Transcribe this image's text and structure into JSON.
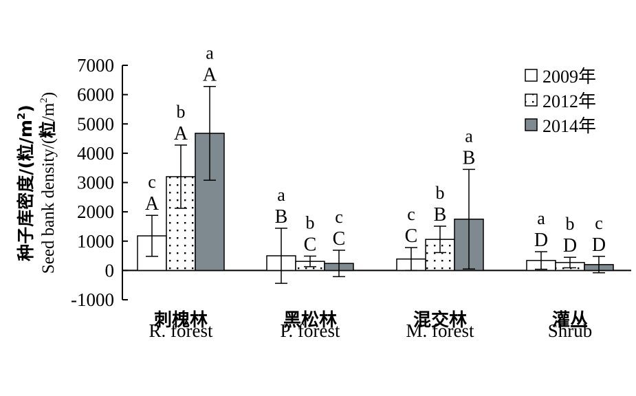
{
  "chart_data": {
    "type": "bar",
    "ylabel_cn": "种子库密度/(粒/m",
    "ylabel_en": "Seed bank density",
    "ylabel_sup": "2",
    "ylabel_close": ")",
    "ylim": [
      -1000,
      7000
    ],
    "yticks": [
      -1000,
      0,
      1000,
      2000,
      3000,
      4000,
      5000,
      6000,
      7000
    ],
    "grid": false,
    "legend_position": "top-right",
    "categories": [
      {
        "cn": "刺槐林",
        "en": "R. forest"
      },
      {
        "cn": "黑松林",
        "en": "P. forest"
      },
      {
        "cn": "混交林",
        "en": "M. forest"
      },
      {
        "cn": "灌丛",
        "en": "Shrub"
      }
    ],
    "series": [
      {
        "name": "2009年",
        "pattern": "white",
        "values": [
          1180,
          500,
          390,
          340
        ],
        "errors": [
          700,
          940,
          390,
          300
        ],
        "upper_letters": [
          "A",
          "B",
          "C",
          "D"
        ],
        "lower_letters": [
          "c",
          "a",
          "c",
          "a"
        ]
      },
      {
        "name": "2012年",
        "pattern": "dotted",
        "values": [
          3200,
          310,
          1060,
          270
        ],
        "errors": [
          1080,
          180,
          450,
          180
        ],
        "upper_letters": [
          "A",
          "C",
          "B",
          "D"
        ],
        "lower_letters": [
          "b",
          "b",
          "b",
          "b"
        ]
      },
      {
        "name": "2014年",
        "pattern": "gray",
        "values": [
          4680,
          240,
          1750,
          200
        ],
        "errors": [
          1600,
          450,
          1700,
          280
        ],
        "upper_letters": [
          "A",
          "C",
          "B",
          "D"
        ],
        "lower_letters": [
          "a",
          "c",
          "a",
          "c"
        ]
      }
    ],
    "colors": {
      "white": "#ffffff",
      "dotted": "#ffffff",
      "gray": "#7f8a90",
      "stroke": "#000000"
    }
  }
}
